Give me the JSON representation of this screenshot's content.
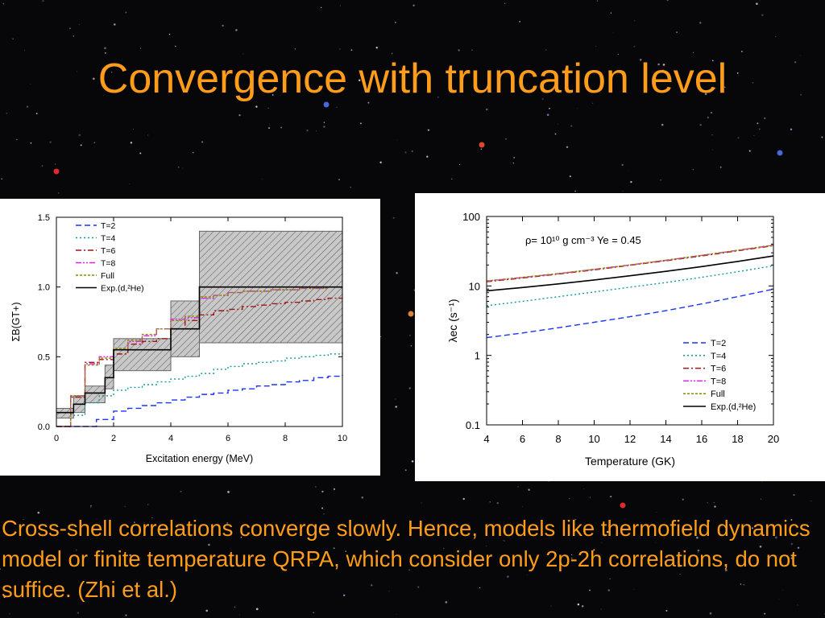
{
  "slide": {
    "title": "Convergence with truncation level",
    "caption": "Cross-shell correlations converge slowly. Hence, models like thermofield dynamics model or finite temperature QRPA, which consider only 2p-2h correlations, do not suffice. (Zhi et al.)",
    "colors": {
      "title": "#ff9c1a",
      "background": "#070709",
      "panel": "#ffffff"
    }
  },
  "chart_data": [
    {
      "type": "line",
      "step": true,
      "xlabel": "Excitation energy  (MeV)",
      "ylabel": "ΣB(GT+)",
      "xlim": [
        0,
        10
      ],
      "ylim": [
        0,
        1.5
      ],
      "xticks": [
        "0",
        "2",
        "4",
        "6",
        "8",
        "10"
      ],
      "yticks": [
        "0.0",
        "0.5",
        "1.0",
        "1.5"
      ],
      "legend_position": "top-left",
      "series": [
        {
          "name": "T=2",
          "color": "#1a33ff",
          "dash": "dashed",
          "x": [
            0,
            1.3,
            1.4,
            2.0,
            2.5,
            3.0,
            3.5,
            4.0,
            4.5,
            5.0,
            5.5,
            6.0,
            6.5,
            7.0,
            7.5,
            8.0,
            8.5,
            9.0,
            9.5,
            10.0
          ],
          "y": [
            0,
            0.0,
            0.05,
            0.11,
            0.13,
            0.15,
            0.17,
            0.19,
            0.21,
            0.23,
            0.24,
            0.26,
            0.27,
            0.29,
            0.3,
            0.32,
            0.33,
            0.35,
            0.36,
            0.37
          ]
        },
        {
          "name": "T=4",
          "color": "#119999",
          "dash": "dotted",
          "x": [
            0,
            0.5,
            1.0,
            1.5,
            2.0,
            2.5,
            3.0,
            3.5,
            4.0,
            4.5,
            5.0,
            5.5,
            6.0,
            6.5,
            7.0,
            7.5,
            8.0,
            8.5,
            9.0,
            9.5,
            10.0
          ],
          "y": [
            0,
            0.08,
            0.17,
            0.22,
            0.26,
            0.28,
            0.3,
            0.32,
            0.34,
            0.36,
            0.38,
            0.41,
            0.43,
            0.45,
            0.46,
            0.47,
            0.49,
            0.5,
            0.51,
            0.52,
            0.53
          ]
        },
        {
          "name": "T=6",
          "color": "#a01515",
          "dash": "dashdot",
          "x": [
            0,
            0.5,
            1.0,
            1.5,
            2.0,
            2.5,
            3.0,
            3.5,
            4.0,
            4.5,
            5.0,
            5.5,
            6.0,
            6.5,
            7.0,
            7.5,
            8.0,
            8.5,
            9.0,
            9.5,
            10.0
          ],
          "y": [
            0,
            0.21,
            0.46,
            0.48,
            0.52,
            0.59,
            0.61,
            0.63,
            0.7,
            0.76,
            0.8,
            0.83,
            0.84,
            0.86,
            0.87,
            0.88,
            0.89,
            0.9,
            0.91,
            0.92,
            0.92
          ]
        },
        {
          "name": "T=8",
          "color": "#e020e0",
          "dash": "dashdotdot",
          "x": [
            0,
            0.5,
            1.0,
            1.5,
            2.0,
            2.5,
            3.0,
            3.5,
            4.0,
            4.5,
            5.0,
            5.5,
            6.0,
            6.5,
            7.0,
            7.5,
            8.0,
            8.5,
            9.0,
            9.5,
            10.0
          ],
          "y": [
            0,
            0.22,
            0.45,
            0.5,
            0.55,
            0.61,
            0.65,
            0.7,
            0.77,
            0.78,
            0.92,
            0.94,
            0.96,
            0.97,
            0.97,
            0.98,
            0.98,
            0.99,
            0.99,
            1.0,
            1.0
          ]
        },
        {
          "name": "Full",
          "color": "#8a8a00",
          "dash": "shortdash",
          "x": [
            0,
            0.5,
            1.0,
            1.5,
            2.0,
            2.5,
            3.0,
            3.5,
            4.0,
            4.5,
            5.0,
            5.5,
            6.0,
            6.5,
            7.0,
            7.5,
            8.0,
            8.5,
            9.0,
            9.5,
            10.0
          ],
          "y": [
            0,
            0.22,
            0.44,
            0.49,
            0.56,
            0.62,
            0.66,
            0.7,
            0.76,
            0.79,
            0.93,
            0.94,
            0.96,
            0.97,
            0.97,
            0.98,
            0.98,
            0.99,
            0.99,
            1.0,
            1.0
          ]
        },
        {
          "name": "Exp.(d,²He)",
          "color": "#000000",
          "dash": "solid",
          "x": [
            0,
            0.6,
            1.0,
            1.7,
            2.0,
            4.0,
            5.0,
            10.0
          ],
          "y": [
            0.1,
            0.16,
            0.24,
            0.35,
            0.55,
            0.7,
            1.0,
            1.0
          ],
          "band_low": [
            0.06,
            0.1,
            0.17,
            0.27,
            0.4,
            0.5,
            0.6,
            0.6
          ],
          "band_high": [
            0.13,
            0.22,
            0.29,
            0.44,
            0.63,
            0.9,
            1.4,
            1.4
          ]
        }
      ]
    },
    {
      "type": "line",
      "log_y": true,
      "xlabel": "Temperature (GK)",
      "ylabel": "λec (s⁻¹)",
      "xlim": [
        4,
        20
      ],
      "ylim": [
        0.1,
        100
      ],
      "xticks": [
        "4",
        "6",
        "8",
        "10",
        "12",
        "14",
        "16",
        "18",
        "20"
      ],
      "yticks": [
        "0.1",
        "1",
        "10",
        "100"
      ],
      "annotation": "ρ= 10¹⁰ g cm⁻³ Ye = 0.45",
      "legend_position": "bottom-right",
      "series": [
        {
          "name": "T=2",
          "color": "#1a33ff",
          "dash": "dashed",
          "x": [
            4,
            6,
            8,
            10,
            12,
            14,
            16,
            18,
            20
          ],
          "y": [
            1.8,
            2.1,
            2.5,
            3.0,
            3.6,
            4.4,
            5.5,
            7.0,
            9.0
          ]
        },
        {
          "name": "T=4",
          "color": "#119999",
          "dash": "dotted",
          "x": [
            4,
            6,
            8,
            10,
            12,
            14,
            16,
            18,
            20
          ],
          "y": [
            5.2,
            6.0,
            7.0,
            8.2,
            9.6,
            11.2,
            13.3,
            16.0,
            19.5
          ]
        },
        {
          "name": "T=6",
          "color": "#a01515",
          "dash": "dashdot",
          "x": [
            4,
            6,
            8,
            10,
            12,
            14,
            16,
            18,
            20
          ],
          "y": [
            11.5,
            13.0,
            14.8,
            17.0,
            19.8,
            23.0,
            27.0,
            32.0,
            38.0
          ]
        },
        {
          "name": "T=8",
          "color": "#e020e0",
          "dash": "dashdotdot",
          "x": [
            4,
            6,
            8,
            10,
            12,
            14,
            16,
            18,
            20
          ],
          "y": [
            11.7,
            13.2,
            15.0,
            17.3,
            20.0,
            23.4,
            27.5,
            32.5,
            38.5
          ]
        },
        {
          "name": "Full",
          "color": "#8a8a00",
          "dash": "shortdash",
          "x": [
            4,
            6,
            8,
            10,
            12,
            14,
            16,
            18,
            20
          ],
          "y": [
            11.8,
            13.3,
            15.1,
            17.4,
            20.1,
            23.5,
            27.6,
            32.7,
            38.8
          ]
        },
        {
          "name": "Exp.(d,²He)",
          "color": "#000000",
          "dash": "solid",
          "x": [
            4,
            6,
            8,
            10,
            12,
            14,
            16,
            18,
            20
          ],
          "y": [
            8.5,
            9.5,
            10.7,
            12.2,
            14.0,
            16.2,
            19.0,
            22.5,
            27.0
          ]
        }
      ]
    }
  ]
}
